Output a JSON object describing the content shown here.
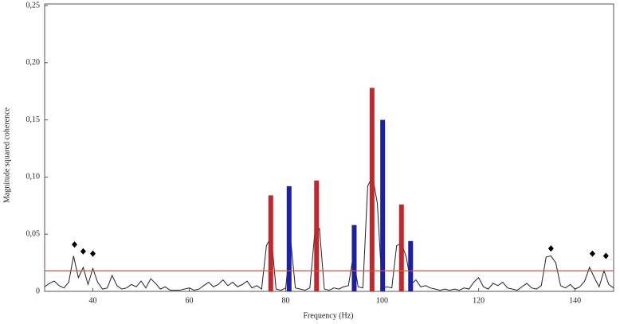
{
  "chart_data": {
    "type": "combo",
    "x_label": "Frequency (Hz)",
    "y_label": "Magnitude squared coherence",
    "xlim": [
      30,
      148
    ],
    "ylim": [
      0,
      0.25
    ],
    "xticks": [
      40,
      60,
      80,
      100,
      120,
      140
    ],
    "yticks": [
      0,
      {
        "value": 0.05,
        "label": "0,05"
      },
      {
        "value": 0.1,
        "label": "0,10"
      },
      {
        "value": 0.15,
        "label": "0,15"
      },
      {
        "value": 0.2,
        "label": "0,20"
      },
      {
        "value": 0.25,
        "label": "0,25"
      }
    ],
    "series": [
      {
        "type": "line",
        "color": "#222222",
        "x": [
          30,
          31,
          32,
          33,
          34,
          35,
          36,
          37,
          38,
          39,
          40,
          41,
          42,
          43,
          44,
          45,
          46,
          47,
          48,
          49,
          50,
          51,
          52,
          53,
          54,
          55,
          56,
          57,
          58,
          59,
          60,
          61,
          62,
          63,
          64,
          65,
          66,
          67,
          68,
          69,
          70,
          71,
          72,
          73,
          74,
          75,
          76,
          77,
          78,
          79,
          80,
          81,
          82,
          83,
          84,
          85,
          86,
          87,
          88,
          89,
          90,
          91,
          92,
          93,
          94,
          95,
          96,
          97,
          98,
          99,
          100,
          101,
          102,
          103,
          104,
          105,
          106,
          107,
          108,
          109,
          110,
          111,
          112,
          113,
          114,
          115,
          116,
          117,
          118,
          119,
          120,
          121,
          122,
          123,
          124,
          125,
          126,
          127,
          128,
          129,
          130,
          131,
          132,
          133,
          134,
          135,
          136,
          137,
          138,
          139,
          140,
          141,
          142,
          143,
          144,
          145,
          146,
          147,
          148
        ],
        "values": [
          0.004,
          0.007,
          0.009,
          0.005,
          0.003,
          0.008,
          0.031,
          0.012,
          0.021,
          0.006,
          0.02,
          0.008,
          0.002,
          0.003,
          0.014,
          0.005,
          0.002,
          0.003,
          0.006,
          0.004,
          0.009,
          0.003,
          0.011,
          0.007,
          0.002,
          0.004,
          0.001,
          0.001,
          0.001,
          0.002,
          0.003,
          0.001,
          0.002,
          0.005,
          0.008,
          0.004,
          0.006,
          0.01,
          0.005,
          0.008,
          0.004,
          0.006,
          0.009,
          0.003,
          0.005,
          0.002,
          0.04,
          0.048,
          0.002,
          0.001,
          0.003,
          0.046,
          0.003,
          0.002,
          0.001,
          0.003,
          0.05,
          0.055,
          0.002,
          0.001,
          0.003,
          0.002,
          0.004,
          0.005,
          0.031,
          0.004,
          0.003,
          0.092,
          0.101,
          0.077,
          0.003,
          0.004,
          0.003,
          0.04,
          0.042,
          0.03,
          0.006,
          0.01,
          0.004,
          0.005,
          0.003,
          0.002,
          0.001,
          0.002,
          0.001,
          0.002,
          0.001,
          0.003,
          0.002,
          0.008,
          0.012,
          0.004,
          0.002,
          0.007,
          0.005,
          0.008,
          0.003,
          0.002,
          0.001,
          0.004,
          0.007,
          0.003,
          0.002,
          0.005,
          0.03,
          0.031,
          0.025,
          0.005,
          0.003,
          0.006,
          0.002,
          0.004,
          0.009,
          0.021,
          0.012,
          0.004,
          0.018,
          0.006,
          0.003
        ]
      },
      {
        "type": "bar",
        "color": "#c0282d",
        "x": [
          76.9,
          86.4,
          97.9,
          104.0
        ],
        "values": [
          0.084,
          0.097,
          0.178,
          0.076
        ]
      },
      {
        "type": "bar",
        "color": "#1c1fa8",
        "x": [
          80.7,
          94.2,
          100.1,
          105.9
        ],
        "values": [
          0.092,
          0.058,
          0.15,
          0.044
        ]
      },
      {
        "type": "hline",
        "color": "#c8583a",
        "values": [
          0.018
        ]
      },
      {
        "type": "marker",
        "color": "#000000",
        "x": [
          36.2,
          38.0,
          40.0,
          135.0,
          143.6,
          146.4
        ],
        "values": [
          0.041,
          0.035,
          0.033,
          0.0375,
          0.033,
          0.031
        ]
      }
    ]
  }
}
